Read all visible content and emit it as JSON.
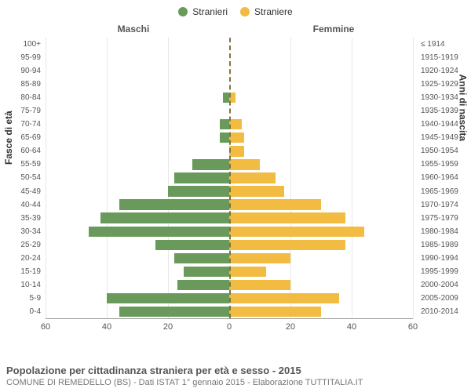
{
  "legend": {
    "left": {
      "label": "Stranieri",
      "color": "#6a9a5b"
    },
    "right": {
      "label": "Straniere",
      "color": "#f2bb41"
    }
  },
  "side_headers": {
    "left": "Maschi",
    "right": "Femmine"
  },
  "y_axis_left_title": "Fasce di età",
  "y_axis_right_title": "Anni di nascita",
  "age_labels": [
    "100+",
    "95-99",
    "90-94",
    "85-89",
    "80-84",
    "75-79",
    "70-74",
    "65-69",
    "60-64",
    "55-59",
    "50-54",
    "45-49",
    "40-44",
    "35-39",
    "30-34",
    "25-29",
    "20-24",
    "15-19",
    "10-14",
    "5-9",
    "0-4"
  ],
  "birth_labels": [
    "≤ 1914",
    "1915-1919",
    "1920-1924",
    "1925-1929",
    "1930-1934",
    "1935-1939",
    "1940-1944",
    "1945-1949",
    "1950-1954",
    "1955-1959",
    "1960-1964",
    "1965-1969",
    "1970-1974",
    "1975-1979",
    "1980-1984",
    "1985-1989",
    "1990-1994",
    "1995-1999",
    "2000-2004",
    "2005-2009",
    "2010-2014"
  ],
  "male_values": [
    0,
    0,
    0,
    0,
    2,
    0,
    3,
    3,
    0,
    12,
    18,
    20,
    36,
    42,
    46,
    24,
    18,
    15,
    17,
    40,
    36
  ],
  "female_values": [
    0,
    0,
    0,
    0,
    2,
    0,
    4,
    5,
    5,
    10,
    15,
    18,
    30,
    38,
    44,
    38,
    20,
    12,
    20,
    36,
    30
  ],
  "x_axis": {
    "max": 60,
    "ticks_left": [
      60,
      40,
      20,
      0
    ],
    "ticks_right": [
      0,
      20,
      40,
      60
    ]
  },
  "colors": {
    "bar_left": "#6a9a5b",
    "bar_right": "#f2bb41",
    "grid": "#e8e8e8",
    "axis_line": "#999999",
    "center_dash": "#82743a",
    "background": "#ffffff"
  },
  "footer": {
    "title": "Popolazione per cittadinanza straniera per età e sesso - 2015",
    "subtitle": "COMUNE DI REMEDELLO (BS) - Dati ISTAT 1° gennaio 2015 - Elaborazione TUTTITALIA.IT"
  }
}
